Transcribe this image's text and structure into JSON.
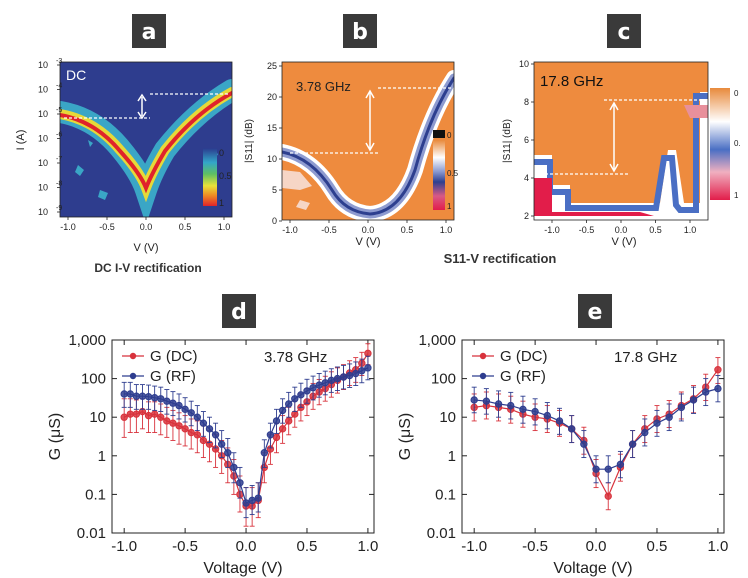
{
  "panels": {
    "a": {
      "letter": "a",
      "inset_label": "DC",
      "ylabel": "I (A)",
      "xlabel": "V (V)",
      "caption": "DC I-V rectification",
      "x_ticks": [
        "-1.0",
        "-0.5",
        "0.0",
        "0.5",
        "1.0"
      ],
      "y_ticks": [
        "10",
        "10",
        "10",
        "10",
        "10",
        "10",
        "10"
      ],
      "y_exps": [
        "-3",
        "-4",
        "-5",
        "-6",
        "-7",
        "-8",
        "-9"
      ],
      "colorbar_ticks": [
        "0",
        "0.5",
        "1"
      ]
    },
    "b": {
      "letter": "b",
      "inset_label": "3.78 GHz",
      "ylabel": "|S11| (dB)",
      "xlabel": "V (V)",
      "x_ticks": [
        "-1.0",
        "-0.5",
        "0.0",
        "0.5",
        "1.0"
      ],
      "y_ticks": [
        "25",
        "20",
        "15",
        "10",
        "5",
        "0"
      ],
      "colorbar_ticks": [
        "0",
        "0.5",
        "1"
      ]
    },
    "c": {
      "letter": "c",
      "inset_label": "17.8 GHz",
      "ylabel": "|S11| (dB)",
      "xlabel": "V (V)",
      "x_ticks": [
        "-1.0",
        "-0.5",
        "0.0",
        "0.5",
        "1.0"
      ],
      "y_ticks": [
        "10",
        "8",
        "6",
        "4",
        "2"
      ],
      "colorbar_ticks": [
        "0",
        "0.",
        "1"
      ]
    },
    "bc_caption": "S11-V rectification",
    "d": {
      "letter": "d"
    },
    "e": {
      "letter": "e"
    }
  },
  "chart_data": [
    {
      "type": "scatter",
      "panel": "d",
      "annotation": "3.78 GHz",
      "xlabel": "Voltage (V)",
      "ylabel": "G (μS)",
      "y_scale": "log",
      "xlim": [
        -1.1,
        1.05
      ],
      "ylim": [
        0.01,
        1000
      ],
      "x_ticks": [
        "-1.0",
        "-0.5",
        "0.0",
        "0.5",
        "1.0"
      ],
      "y_ticks": [
        "1,000",
        "100",
        "10",
        "1",
        "0.1",
        "0.01"
      ],
      "legend_position": "top-left",
      "x": [
        -1.0,
        -0.95,
        -0.9,
        -0.85,
        -0.8,
        -0.75,
        -0.7,
        -0.65,
        -0.6,
        -0.55,
        -0.5,
        -0.45,
        -0.4,
        -0.35,
        -0.3,
        -0.25,
        -0.2,
        -0.15,
        -0.1,
        -0.05,
        0.0,
        0.05,
        0.1,
        0.15,
        0.2,
        0.25,
        0.3,
        0.35,
        0.4,
        0.45,
        0.5,
        0.55,
        0.6,
        0.65,
        0.7,
        0.75,
        0.8,
        0.85,
        0.9,
        0.95,
        1.0
      ],
      "series": [
        {
          "name": "G (DC)",
          "color": "#d8323c",
          "values": [
            10,
            12,
            12,
            14,
            11,
            12,
            10,
            8,
            7,
            6,
            5,
            4,
            3.5,
            2.5,
            2,
            1.5,
            1,
            0.6,
            0.3,
            0.1,
            0.05,
            0.05,
            0.07,
            0.5,
            1.5,
            3,
            5,
            8,
            12,
            18,
            25,
            35,
            45,
            55,
            70,
            90,
            110,
            140,
            170,
            250,
            450
          ],
          "err_hi": [
            30,
            30,
            28,
            30,
            25,
            25,
            22,
            18,
            15,
            13,
            11,
            9,
            8,
            6,
            4.5,
            3.5,
            2.5,
            1.6,
            0.8,
            0.3,
            0.15,
            0.15,
            0.2,
            1.2,
            3.5,
            7,
            11,
            18,
            26,
            40,
            55,
            75,
            95,
            115,
            150,
            190,
            230,
            290,
            350,
            480,
            800
          ],
          "err_lo": [
            3,
            4,
            4,
            5,
            4,
            4,
            3.5,
            3,
            2.5,
            2,
            1.8,
            1.5,
            1.2,
            0.9,
            0.7,
            0.5,
            0.35,
            0.2,
            0.1,
            0.035,
            0.015,
            0.015,
            0.025,
            0.2,
            0.6,
            1.2,
            2.1,
            3.5,
            5.5,
            8,
            11,
            16,
            21,
            26,
            33,
            42,
            52,
            66,
            80,
            120,
            230
          ]
        },
        {
          "name": "G (RF)",
          "color": "#2e3d8f",
          "values": [
            40,
            40,
            35,
            35,
            34,
            32,
            30,
            26,
            23,
            20,
            16,
            13,
            10,
            7,
            5,
            3.5,
            2,
            1.2,
            0.5,
            0.2,
            0.06,
            0.07,
            0.08,
            1.2,
            3.5,
            8,
            15,
            22,
            30,
            38,
            48,
            58,
            68,
            78,
            90,
            100,
            110,
            120,
            135,
            160,
            190
          ],
          "err_hi": [
            80,
            80,
            70,
            70,
            68,
            64,
            60,
            52,
            46,
            40,
            32,
            26,
            20,
            14,
            10,
            7,
            4.5,
            2.8,
            1.2,
            0.5,
            0.15,
            0.17,
            0.2,
            2.6,
            7,
            16,
            30,
            44,
            60,
            76,
            96,
            116,
            136,
            156,
            180,
            200,
            220,
            240,
            270,
            320,
            380
          ],
          "err_lo": [
            18,
            18,
            16,
            16,
            16,
            15,
            14,
            12,
            11,
            9,
            7.5,
            6,
            4.5,
            3.2,
            2.2,
            1.6,
            0.9,
            0.5,
            0.2,
            0.08,
            0.025,
            0.03,
            0.035,
            0.5,
            1.6,
            3.8,
            7,
            10,
            14,
            18,
            23,
            28,
            33,
            38,
            44,
            49,
            54,
            59,
            66,
            78,
            93
          ]
        }
      ]
    },
    {
      "type": "scatter",
      "panel": "e",
      "annotation": "17.8 GHz",
      "xlabel": "Voltage (V)",
      "ylabel": "G (μS)",
      "y_scale": "log",
      "xlim": [
        -1.1,
        1.05
      ],
      "ylim": [
        0.01,
        1000
      ],
      "x_ticks": [
        "-1.0",
        "-0.5",
        "0.0",
        "0.5",
        "1.0"
      ],
      "y_ticks": [
        "1,000",
        "100",
        "10",
        "1",
        "0.1",
        "0.01"
      ],
      "legend_position": "top-left",
      "x": [
        -1.0,
        -0.9,
        -0.8,
        -0.7,
        -0.6,
        -0.5,
        -0.4,
        -0.3,
        -0.2,
        -0.1,
        0.0,
        0.1,
        0.2,
        0.3,
        0.4,
        0.5,
        0.6,
        0.7,
        0.8,
        0.9,
        1.0
      ],
      "series": [
        {
          "name": "G (DC)",
          "color": "#d8323c",
          "values": [
            18,
            20,
            18,
            16,
            12,
            10,
            9,
            7,
            5,
            2.5,
            0.35,
            0.09,
            0.5,
            2,
            5,
            9,
            12,
            20,
            30,
            60,
            170
          ],
          "err_hi": [
            40,
            45,
            40,
            35,
            26,
            22,
            20,
            15,
            11,
            5.5,
            0.8,
            0.2,
            1.1,
            4.5,
            11,
            20,
            27,
            45,
            66,
            130,
            350
          ],
          "err_lo": [
            8,
            9,
            8,
            7,
            5.5,
            4.5,
            4,
            3.2,
            2.2,
            1.1,
            0.15,
            0.04,
            0.22,
            0.9,
            2.2,
            4,
            5.4,
            9,
            13,
            27,
            75
          ]
        },
        {
          "name": "G (RF)",
          "color": "#2e3d8f",
          "values": [
            28,
            26,
            22,
            20,
            16,
            14,
            11,
            8,
            5,
            2,
            0.45,
            0.45,
            0.6,
            2,
            4,
            7,
            10,
            18,
            28,
            45,
            55
          ],
          "err_hi": [
            60,
            55,
            48,
            44,
            35,
            30,
            24,
            17,
            11,
            4.5,
            1,
            1,
            1.3,
            4.5,
            9,
            15,
            22,
            40,
            60,
            100,
            120
          ],
          "err_lo": [
            13,
            12,
            10,
            9,
            7,
            6.3,
            5,
            3.6,
            2.2,
            0.9,
            0.2,
            0.2,
            0.27,
            0.9,
            1.8,
            3.2,
            4.5,
            8,
            12.5,
            20,
            25
          ]
        }
      ]
    }
  ]
}
